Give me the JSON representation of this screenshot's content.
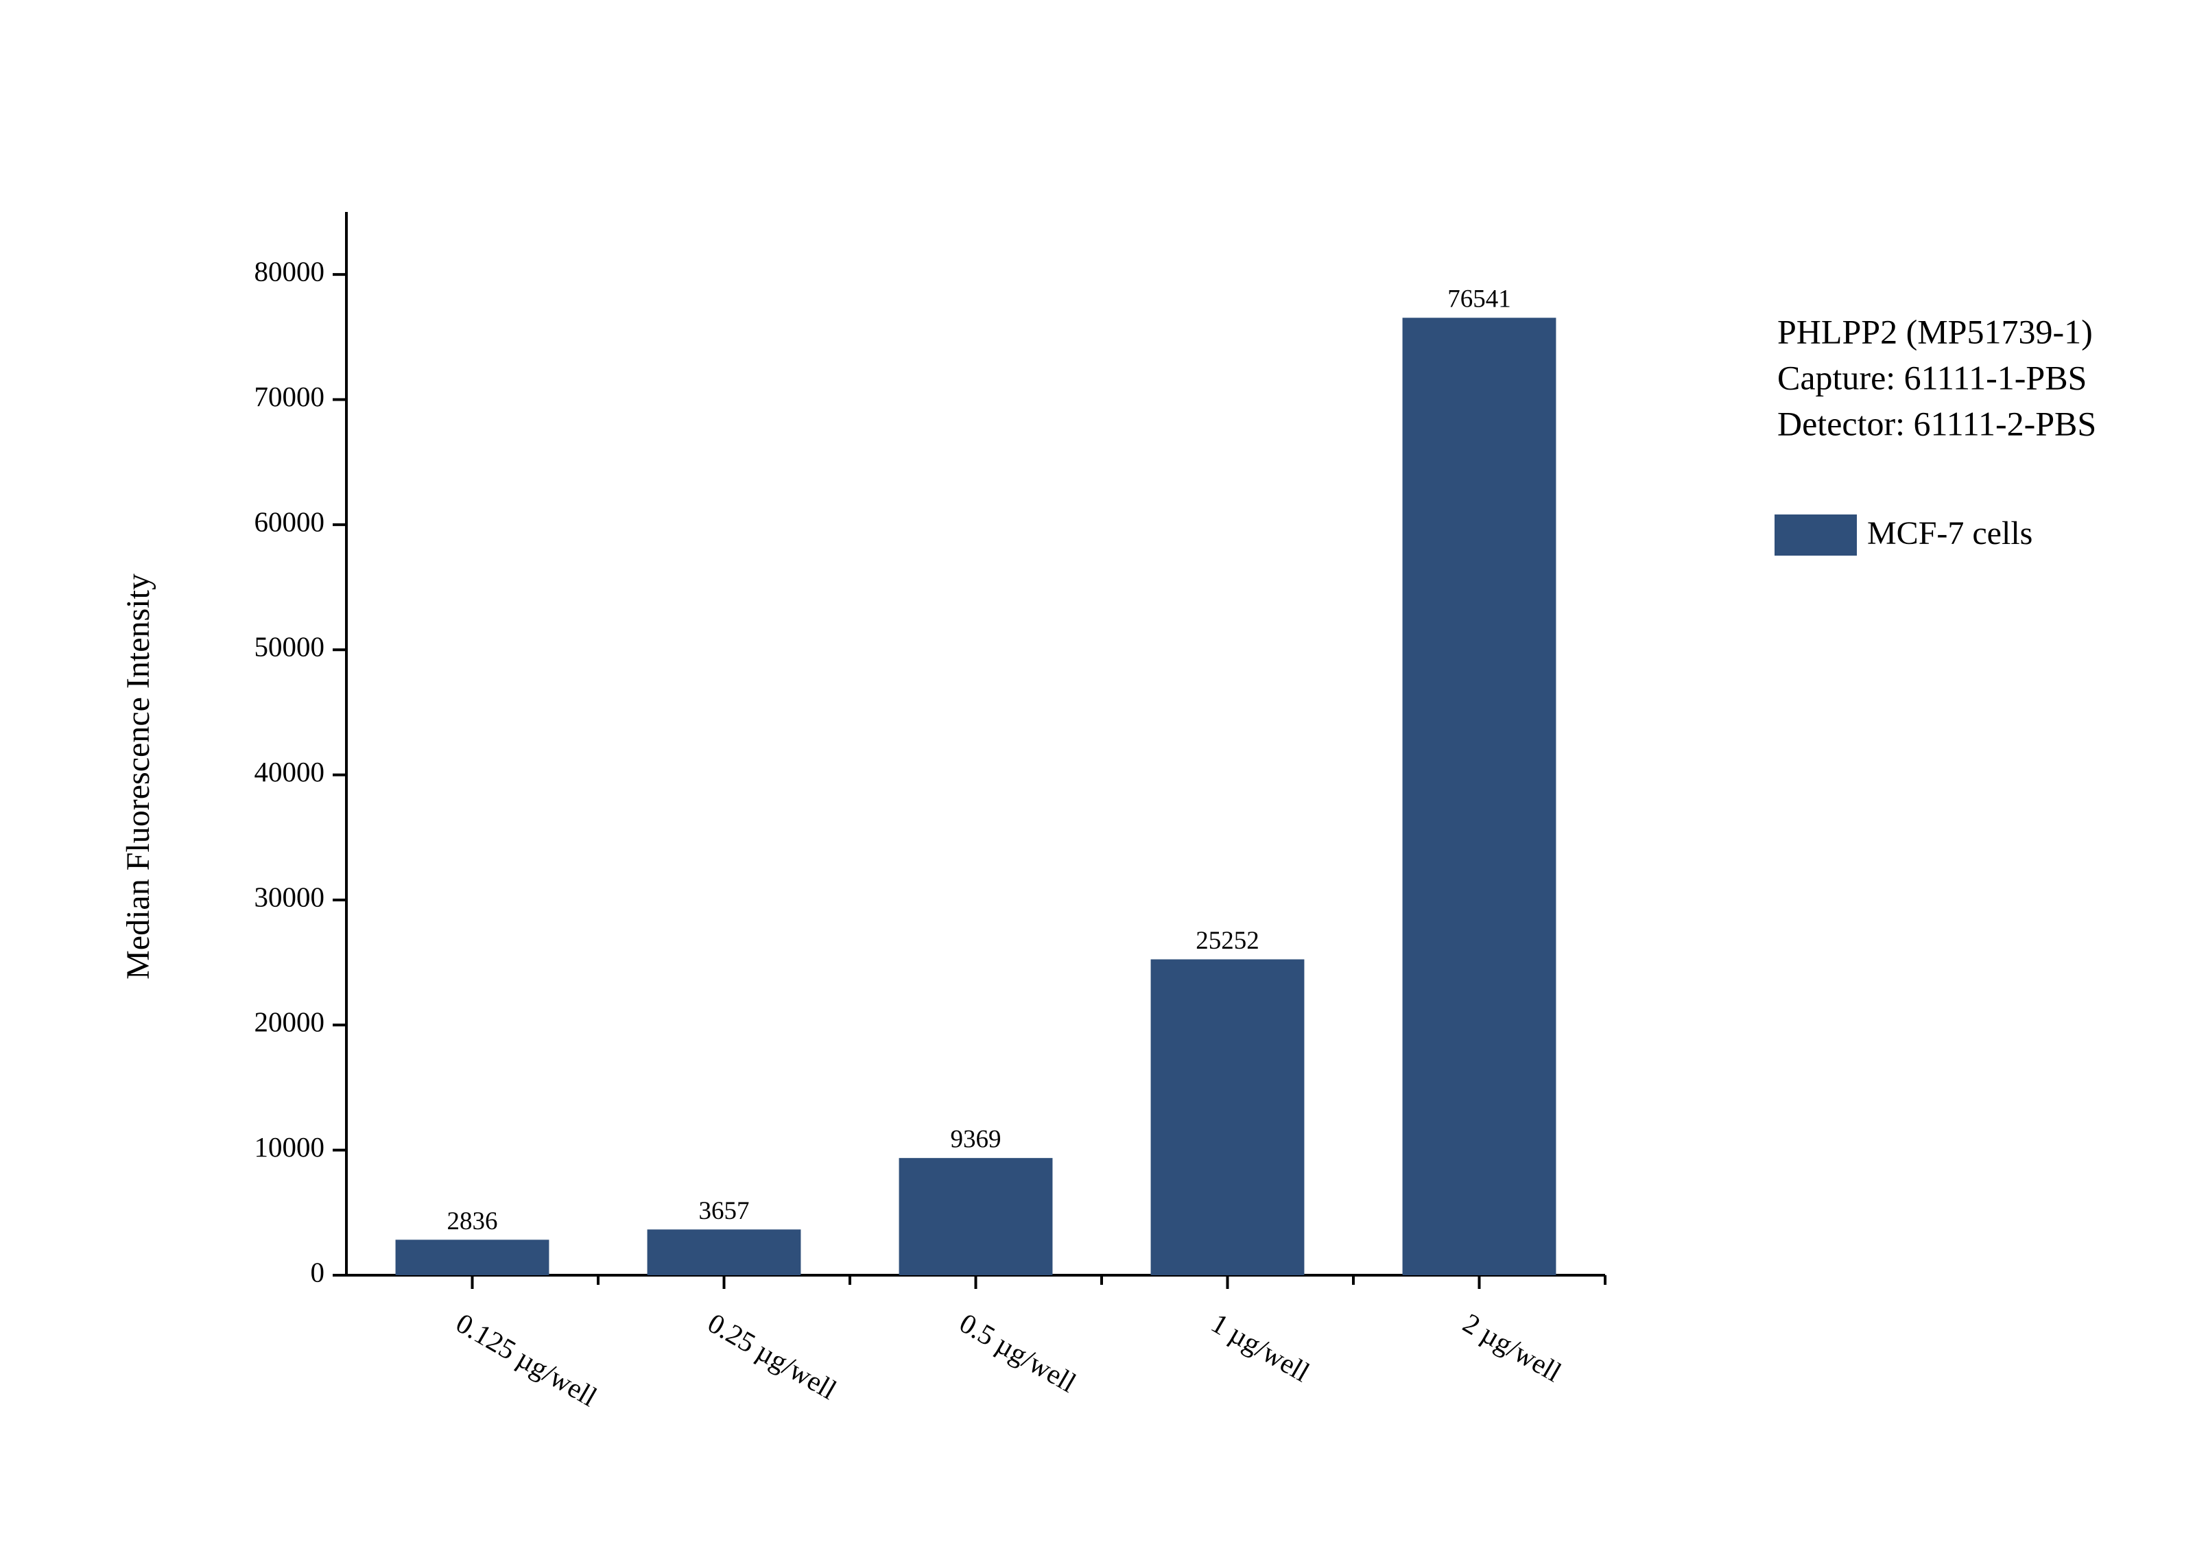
{
  "chart_data": {
    "type": "bar",
    "y_label": "Median Fluorescence Intensity",
    "annotations": [
      "PHLPP2 (MP51739-1)",
      "Capture: 61111-1-PBS",
      "Detector: 61111-2-PBS"
    ],
    "categories": [
      "0.125 µg/well",
      "0.25 µg/well",
      "0.5 µg/well",
      "1 µg/well",
      "2 µg/well"
    ],
    "series": [
      {
        "name": "MCF-7 cells",
        "color": "#2f4f7a",
        "values": [
          2836,
          3657,
          9369,
          25252,
          76541
        ]
      }
    ],
    "ylim": [
      0,
      85000
    ],
    "yticks": [
      0,
      10000,
      20000,
      30000,
      40000,
      50000,
      60000,
      70000,
      80000
    ],
    "grid": false,
    "legend": "right"
  }
}
